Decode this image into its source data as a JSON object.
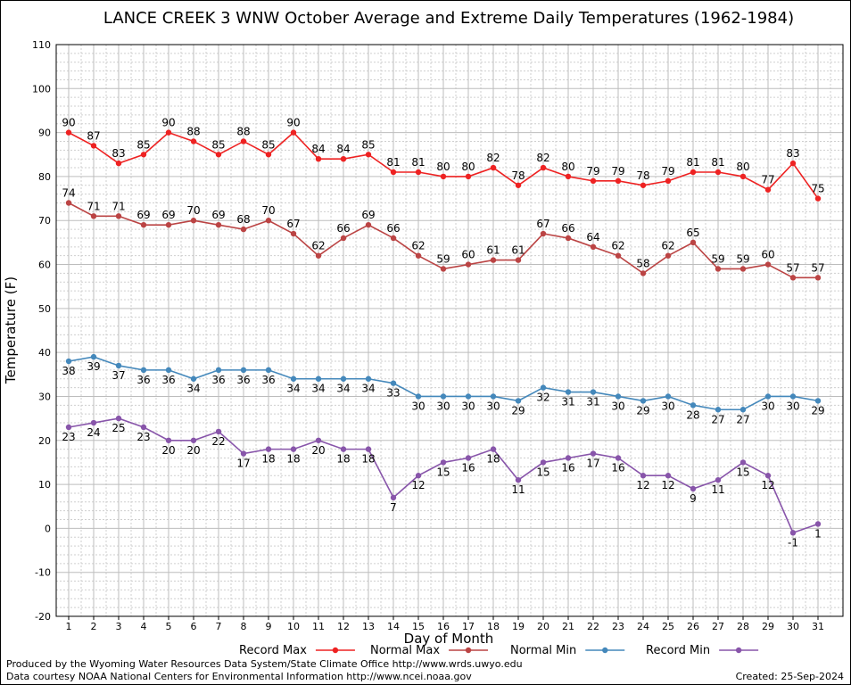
{
  "chart_data": {
    "type": "line",
    "title": "LANCE CREEK 3 WNW October Average and Extreme Daily Temperatures (1962-1984)",
    "xlabel": "Day of Month",
    "ylabel": "Temperature (F)",
    "ylim": [
      -20,
      110
    ],
    "ytick_step": 10,
    "grid": true,
    "legend_placement": "bottom",
    "x": [
      1,
      2,
      3,
      4,
      5,
      6,
      7,
      8,
      9,
      10,
      11,
      12,
      13,
      14,
      15,
      16,
      17,
      18,
      19,
      20,
      21,
      22,
      23,
      24,
      25,
      26,
      27,
      28,
      29,
      30,
      31
    ],
    "series": [
      {
        "name": "Record Max",
        "color": "#ee2222",
        "label_position": "above",
        "values": [
          90,
          87,
          83,
          85,
          90,
          88,
          85,
          88,
          85,
          90,
          84,
          84,
          85,
          81,
          81,
          80,
          80,
          82,
          78,
          82,
          80,
          79,
          79,
          78,
          79,
          81,
          81,
          80,
          77,
          83,
          75
        ]
      },
      {
        "name": "Normal Max",
        "color": "#bb4444",
        "label_position": "above",
        "values": [
          74,
          71,
          71,
          69,
          69,
          70,
          69,
          68,
          70,
          67,
          62,
          66,
          69,
          66,
          62,
          59,
          60,
          61,
          61,
          67,
          66,
          64,
          62,
          58,
          62,
          65,
          59,
          59,
          60,
          57,
          57
        ]
      },
      {
        "name": "Normal Min",
        "color": "#4488bb",
        "label_position": "below",
        "values": [
          38,
          39,
          37,
          36,
          36,
          34,
          36,
          36,
          36,
          34,
          34,
          34,
          34,
          33,
          30,
          30,
          30,
          30,
          29,
          32,
          31,
          31,
          30,
          29,
          30,
          28,
          27,
          27,
          30,
          30,
          29
        ]
      },
      {
        "name": "Record Min",
        "color": "#8855aa",
        "label_position": "below",
        "values": [
          23,
          24,
          25,
          23,
          20,
          20,
          22,
          17,
          18,
          18,
          20,
          18,
          18,
          7,
          12,
          15,
          16,
          18,
          11,
          15,
          16,
          17,
          16,
          12,
          12,
          9,
          11,
          15,
          12,
          -1,
          1
        ]
      }
    ]
  },
  "footer": {
    "produced_by": "Produced by the Wyoming Water Resources Data System/State Climate Office http://www.wrds.uwyo.edu",
    "data_courtesy": "Data courtesy NOAA National Centers for Environmental Information http://www.ncei.noaa.gov",
    "created": "Created:  25-Sep-2024"
  }
}
